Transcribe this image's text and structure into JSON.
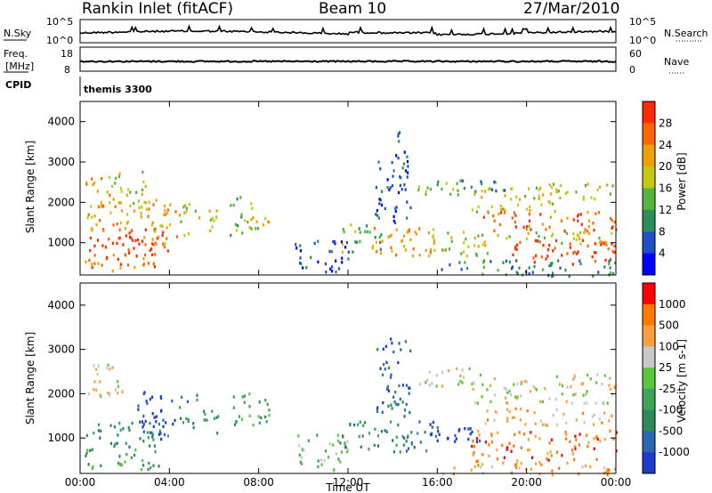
{
  "header": {
    "station": "Rankin Inlet (fitACF)",
    "beam": "Beam 10",
    "date": "27/Mar/2010"
  },
  "nsky_panel": {
    "left_label": "N.Sky",
    "right_label": "N.Search",
    "left_ticks": [
      "10^5",
      "10^0"
    ],
    "right_ticks": [
      "10^5",
      "10^0"
    ]
  },
  "freq_panel": {
    "left_label_line1": "Freq.",
    "left_label_line2": "[MHz]",
    "right_label": "Nave",
    "left_ticks": [
      "18",
      "8"
    ],
    "right_ticks": [
      "60",
      "0"
    ]
  },
  "cpid_panel": {
    "label": "CPID",
    "program": "themis 3300"
  },
  "chart_data": [
    {
      "type": "heatmap",
      "name": "power",
      "ylabel": "Slant Range [km]",
      "xlabel": "",
      "x_range": [
        0,
        24
      ],
      "ylim": [
        200,
        4500
      ],
      "y_ticks": [
        1000,
        2000,
        3000,
        4000
      ],
      "colorbar": {
        "label": "Power [dB]",
        "ticks": [
          "4",
          "8",
          "12",
          "16",
          "20",
          "24",
          "28"
        ],
        "colors": [
          "#0000ff",
          "#1f50c8",
          "#2a8f5a",
          "#55b43c",
          "#c8c814",
          "#f0a000",
          "#ff6600",
          "#ff2a00"
        ]
      },
      "regions": [
        {
          "t0": 0.2,
          "t1": 4.0,
          "r0": 700,
          "r1": 1400,
          "level": 7
        },
        {
          "t0": 0.2,
          "t1": 3.5,
          "r0": 300,
          "r1": 800,
          "level": 6
        },
        {
          "t0": 0.3,
          "t1": 2.5,
          "r0": 1300,
          "r1": 2000,
          "level": 5
        },
        {
          "t0": 0.2,
          "t1": 1.5,
          "r0": 1900,
          "r1": 2700,
          "level": 5
        },
        {
          "t0": 1.5,
          "t1": 3.0,
          "r0": 2000,
          "r1": 2800,
          "level": 4
        },
        {
          "t0": 2.5,
          "t1": 4.3,
          "r0": 1000,
          "r1": 2100,
          "level": 5
        },
        {
          "t0": 4.4,
          "t1": 5.3,
          "r0": 1200,
          "r1": 2000,
          "level": 4
        },
        {
          "t0": 5.5,
          "t1": 6.2,
          "r0": 1100,
          "r1": 1900,
          "level": 4
        },
        {
          "t0": 6.7,
          "t1": 7.5,
          "r0": 1200,
          "r1": 2200,
          "level": 3
        },
        {
          "t0": 7.5,
          "t1": 8.5,
          "r0": 1300,
          "r1": 2100,
          "level": 4
        },
        {
          "t0": 9.5,
          "t1": 12.0,
          "r0": 300,
          "r1": 1100,
          "level": 1
        },
        {
          "t0": 11.5,
          "t1": 13.5,
          "r0": 800,
          "r1": 1500,
          "level": 3
        },
        {
          "t0": 13.0,
          "t1": 16.0,
          "r0": 700,
          "r1": 1400,
          "level": 5
        },
        {
          "t0": 13.2,
          "t1": 14.8,
          "r0": 1500,
          "r1": 3300,
          "level": 1
        },
        {
          "t0": 14.0,
          "t1": 14.3,
          "r0": 3300,
          "r1": 4000,
          "level": 1
        },
        {
          "t0": 15.5,
          "t1": 18.5,
          "r0": 700,
          "r1": 1300,
          "level": 4
        },
        {
          "t0": 15.0,
          "t1": 17.5,
          "r0": 2200,
          "r1": 2600,
          "level": 3
        },
        {
          "t0": 17.5,
          "t1": 21.5,
          "r0": 1800,
          "r1": 2400,
          "level": 4
        },
        {
          "t0": 17.0,
          "t1": 19.0,
          "r0": 2300,
          "r1": 2600,
          "level": 2
        },
        {
          "t0": 18.0,
          "t1": 24.0,
          "r0": 1300,
          "r1": 1800,
          "level": 6
        },
        {
          "t0": 19.0,
          "t1": 24.0,
          "r0": 500,
          "r1": 1100,
          "level": 7
        },
        {
          "t0": 18.5,
          "t1": 24.0,
          "r0": 1000,
          "r1": 1300,
          "level": 4
        },
        {
          "t0": 20.5,
          "t1": 24.0,
          "r0": 2100,
          "r1": 2500,
          "level": 4
        },
        {
          "t0": 16.0,
          "t1": 24.0,
          "r0": 200,
          "r1": 600,
          "level": 2
        }
      ]
    },
    {
      "type": "heatmap",
      "name": "velocity",
      "ylabel": "Slant Range [km]",
      "xlabel": "Time UT",
      "x_range": [
        0,
        24
      ],
      "x_ticks": [
        "00:00",
        "04:00",
        "08:00",
        "12:00",
        "16:00",
        "20:00",
        "00:00"
      ],
      "ylim": [
        200,
        4500
      ],
      "y_ticks": [
        1000,
        2000,
        3000,
        4000
      ],
      "colorbar": {
        "label": "Velocity [m s-1]",
        "ticks": [
          "1000",
          "500",
          "100",
          "25",
          "-25",
          "-100",
          "-500",
          "-1000"
        ],
        "colors": [
          "#1e3ccc",
          "#2a66b4",
          "#2f8a5a",
          "#3ca55a",
          "#5ac83c",
          "#c8c8c8",
          "#ffa040",
          "#ff7a00",
          "#ff0000"
        ]
      },
      "regions": [
        {
          "t0": 0.2,
          "t1": 4.0,
          "r0": 800,
          "r1": 1400,
          "level": 2
        },
        {
          "t0": 0.2,
          "t1": 3.5,
          "r0": 300,
          "r1": 800,
          "level": 3
        },
        {
          "t0": 0.3,
          "t1": 2.0,
          "r0": 1900,
          "r1": 2700,
          "level": 5
        },
        {
          "t0": 2.5,
          "t1": 4.3,
          "r0": 1000,
          "r1": 2100,
          "level": 0
        },
        {
          "t0": 4.4,
          "t1": 5.3,
          "r0": 1200,
          "r1": 2000,
          "level": 2
        },
        {
          "t0": 5.5,
          "t1": 6.2,
          "r0": 1100,
          "r1": 1900,
          "level": 2
        },
        {
          "t0": 6.7,
          "t1": 8.5,
          "r0": 1300,
          "r1": 2100,
          "level": 3
        },
        {
          "t0": 9.5,
          "t1": 12.0,
          "r0": 300,
          "r1": 1100,
          "level": 4
        },
        {
          "t0": 11.5,
          "t1": 16.0,
          "r0": 700,
          "r1": 1400,
          "level": 2
        },
        {
          "t0": 13.2,
          "t1": 14.8,
          "r0": 1500,
          "r1": 3300,
          "level": 1
        },
        {
          "t0": 15.5,
          "t1": 18.0,
          "r0": 900,
          "r1": 1400,
          "level": 0
        },
        {
          "t0": 15.0,
          "t1": 18.0,
          "r0": 2200,
          "r1": 2600,
          "level": 5
        },
        {
          "t0": 17.5,
          "t1": 24.0,
          "r0": 1800,
          "r1": 2500,
          "level": 5
        },
        {
          "t0": 17.5,
          "t1": 24.0,
          "r0": 500,
          "r1": 1200,
          "level": 7
        },
        {
          "t0": 18.0,
          "t1": 24.0,
          "r0": 1300,
          "r1": 1700,
          "level": 6
        },
        {
          "t0": 16.0,
          "t1": 24.0,
          "r0": 200,
          "r1": 500,
          "level": 6
        }
      ]
    }
  ]
}
